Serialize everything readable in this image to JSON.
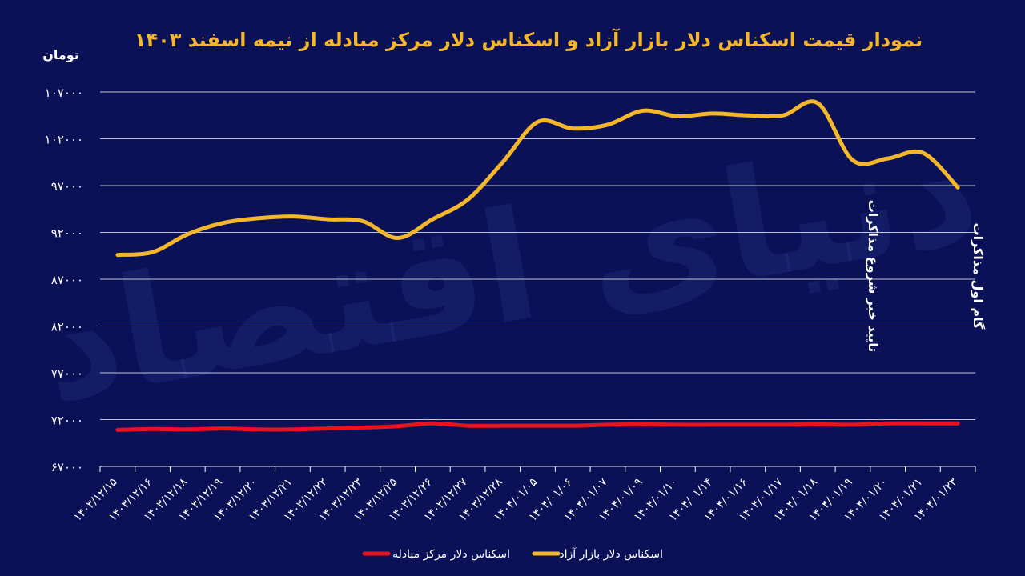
{
  "chart_data": {
    "type": "line",
    "title": "نمودار قیمت اسکناس دلار بازار آزاد و اسکناس دلار مرکز مبادله از نیمه اسفند ۱۴۰۳",
    "ylabel": "تومان",
    "xlabel": "",
    "ylim": [
      67000,
      107000
    ],
    "yticks": [
      67000,
      72000,
      77000,
      82000,
      87000,
      92000,
      97000,
      102000,
      107000
    ],
    "ytick_labels": [
      "۶۷۰۰۰",
      "۷۲۰۰۰",
      "۷۷۰۰۰",
      "۸۲۰۰۰",
      "۸۷۰۰۰",
      "۹۲۰۰۰",
      "۹۷۰۰۰",
      "۱۰۲۰۰۰",
      "۱۰۷۰۰۰"
    ],
    "grid": true,
    "legend_position": "bottom",
    "categories": [
      "۱۴۰۳/۱۲/۱۵",
      "۱۴۰۳/۱۲/۱۶",
      "۱۴۰۳/۱۲/۱۸",
      "۱۴۰۳/۱۲/۱۹",
      "۱۴۰۳/۱۲/۲۰",
      "۱۴۰۳/۱۲/۲۱",
      "۱۴۰۳/۱۲/۲۲",
      "۱۴۰۳/۱۲/۲۳",
      "۱۴۰۳/۱۲/۲۵",
      "۱۴۰۳/۱۲/۲۶",
      "۱۴۰۳/۱۲/۲۷",
      "۱۴۰۳/۱۲/۲۸",
      "۱۴۰۴/۰۱/۰۵",
      "۱۴۰۴/۰۱/۰۶",
      "۱۴۰۴/۰۱/۰۷",
      "۱۴۰۴/۰۱/۰۹",
      "۱۴۰۴/۰۱/۱۰",
      "۱۴۰۴/۰۱/۱۴",
      "۱۴۰۴/۰۱/۱۶",
      "۱۴۰۴/۰۱/۱۷",
      "۱۴۰۴/۰۱/۱۸",
      "۱۴۰۴/۰۱/۱۹",
      "۱۴۰۴/۰۱/۲۰",
      "۱۴۰۴/۰۱/۲۱",
      "۱۴۰۴/۰۱/۲۳"
    ],
    "series": [
      {
        "name": "اسکناس دلار بازار آزاد",
        "color": "#f4b62a",
        "values": [
          89600,
          89900,
          91800,
          93000,
          93500,
          93700,
          93400,
          93200,
          91400,
          93400,
          95500,
          99500,
          103800,
          103100,
          103500,
          105000,
          104400,
          104700,
          104500,
          104500,
          105800,
          99700,
          99900,
          100500,
          96800
        ]
      },
      {
        "name": "اسکناس دلار مرکز مبادله",
        "color": "#e8131d",
        "values": [
          70900,
          71000,
          70950,
          71050,
          70950,
          70950,
          71050,
          71150,
          71300,
          71600,
          71350,
          71350,
          71350,
          71350,
          71450,
          71500,
          71450,
          71450,
          71450,
          71450,
          71500,
          71450,
          71600,
          71600,
          71600
        ]
      }
    ],
    "annotations": [
      {
        "text": "تایید خبر شروع مذاکرات",
        "category_index": 21
      },
      {
        "text": "گام اول مذاکرات",
        "category_index": 24
      }
    ],
    "watermark": "دنیای اقتصاد"
  }
}
